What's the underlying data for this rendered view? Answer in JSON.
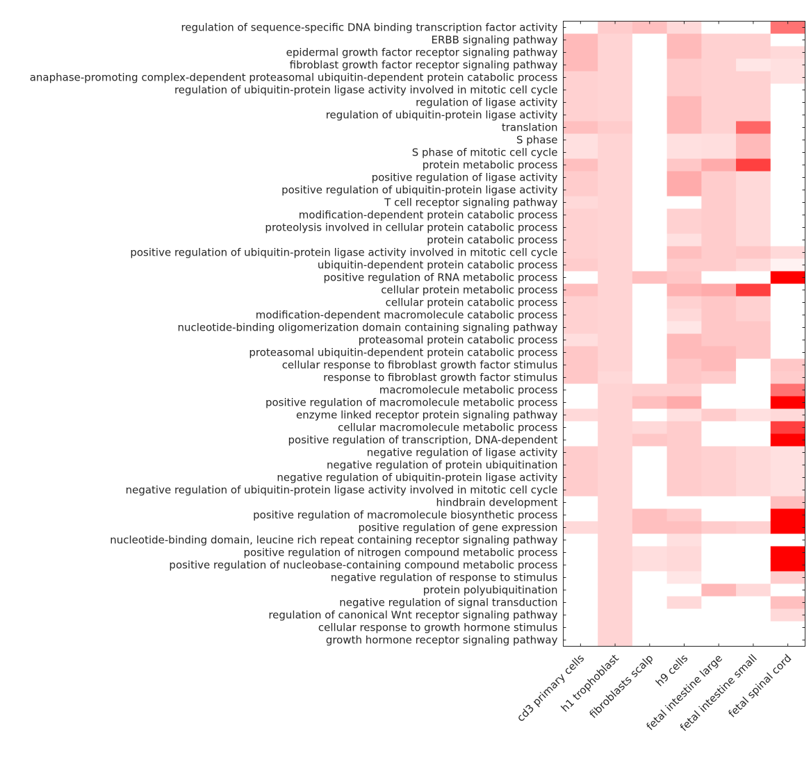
{
  "chart_data": {
    "type": "heatmap",
    "title": "",
    "xlabel": "",
    "ylabel": "",
    "colormap": {
      "low": "#ffffff",
      "high": "#ff0000"
    },
    "value_range": [
      0,
      1
    ],
    "columns": [
      "cd3 primary cells",
      "h1 trophoblast",
      "fibroblasts scalp",
      "h9 cells",
      "fetal intestine large",
      "fetal intestine small",
      "fetal spinal cord"
    ],
    "rows": [
      "regulation of sequence-specific DNA binding transcription factor activity",
      "ERBB signaling pathway",
      "epidermal growth factor receptor signaling pathway",
      "fibroblast growth factor receptor signaling pathway",
      "anaphase-promoting complex-dependent proteasomal ubiquitin-dependent protein catabolic process",
      "regulation of ubiquitin-protein ligase activity involved in mitotic cell cycle",
      "regulation of ligase activity",
      "regulation of ubiquitin-protein ligase activity",
      "translation",
      "S phase",
      "S phase of mitotic cell cycle",
      "protein metabolic process",
      "positive regulation of ligase activity",
      "positive regulation of ubiquitin-protein ligase activity",
      "T cell receptor signaling pathway",
      "modification-dependent protein catabolic process",
      "proteolysis involved in cellular protein catabolic process",
      "protein catabolic process",
      "positive regulation of ubiquitin-protein ligase activity involved in mitotic cell cycle",
      "ubiquitin-dependent protein catabolic process",
      "positive regulation of RNA metabolic process",
      "cellular protein metabolic process",
      "cellular protein catabolic process",
      "modification-dependent macromolecule catabolic process",
      "nucleotide-binding oligomerization domain containing signaling pathway",
      "proteasomal protein catabolic process",
      "proteasomal ubiquitin-dependent protein catabolic process",
      "cellular response to fibroblast growth factor stimulus",
      "response to fibroblast growth factor stimulus",
      "macromolecule metabolic process",
      "positive regulation of macromolecule metabolic process",
      "enzyme linked receptor protein signaling pathway",
      "cellular macromolecule metabolic process",
      "positive regulation of transcription, DNA-dependent",
      "negative regulation of ligase activity",
      "negative regulation of protein ubiquitination",
      "negative regulation of ubiquitin-protein ligase activity",
      "negative regulation of ubiquitin-protein ligase activity involved in mitotic cell cycle",
      "hindbrain development",
      "positive regulation of macromolecule biosynthetic process",
      "positive regulation of gene expression",
      "nucleotide-binding domain, leucine rich repeat containing receptor signaling pathway",
      "positive regulation of nitrogen compound metabolic process",
      "positive regulation of nucleobase-containing compound metabolic process",
      "negative regulation of response to stimulus",
      "protein polyubiquitination",
      "negative regulation of signal transduction",
      "regulation of canonical Wnt receptor signaling pathway",
      "cellular response to growth hormone stimulus",
      "growth hormone receptor signaling pathway"
    ],
    "values_by_column": [
      [
        0,
        0.27,
        0.27,
        0.27,
        0.18,
        0.18,
        0.18,
        0.18,
        0.25,
        0.12,
        0.12,
        0.25,
        0.2,
        0.2,
        0.15,
        0.18,
        0.18,
        0.18,
        0.18,
        0.2,
        0,
        0.25,
        0.18,
        0.18,
        0.18,
        0.13,
        0.22,
        0.22,
        0.22,
        0,
        0,
        0.15,
        0,
        0,
        0.2,
        0.2,
        0.2,
        0.2,
        0,
        0,
        0.15,
        0,
        0,
        0,
        0,
        0,
        0,
        0,
        0,
        0
      ],
      [
        0.2,
        0.17,
        0.17,
        0.17,
        0.17,
        0.17,
        0.17,
        0.17,
        0.2,
        0.17,
        0.17,
        0.17,
        0.17,
        0.17,
        0.17,
        0.17,
        0.17,
        0.17,
        0.17,
        0.17,
        0.17,
        0.17,
        0.17,
        0.17,
        0.17,
        0.17,
        0.17,
        0.17,
        0.15,
        0.17,
        0.17,
        0.17,
        0.17,
        0.17,
        0.17,
        0.17,
        0.17,
        0.17,
        0.17,
        0.17,
        0.17,
        0.17,
        0.17,
        0.17,
        0.17,
        0.17,
        0.17,
        0.17,
        0.17,
        0.17
      ],
      [
        0.25,
        0,
        0,
        0,
        0,
        0,
        0,
        0,
        0,
        0,
        0,
        0,
        0,
        0,
        0,
        0,
        0,
        0,
        0,
        0,
        0.25,
        0,
        0,
        0,
        0,
        0,
        0,
        0,
        0,
        0.18,
        0.25,
        0,
        0.15,
        0.22,
        0,
        0,
        0,
        0,
        0,
        0.25,
        0.25,
        0,
        0.13,
        0.13,
        0,
        0,
        0,
        0,
        0,
        0
      ],
      [
        0.15,
        0.27,
        0.27,
        0.2,
        0.2,
        0.2,
        0.28,
        0.28,
        0.28,
        0.12,
        0.12,
        0.22,
        0.33,
        0.33,
        0,
        0.18,
        0.18,
        0.12,
        0.25,
        0.2,
        0.22,
        0.3,
        0.18,
        0.15,
        0.1,
        0.27,
        0.27,
        0.22,
        0.22,
        0.18,
        0.33,
        0.12,
        0.2,
        0.2,
        0.2,
        0.2,
        0.2,
        0.2,
        0,
        0.2,
        0.25,
        0.12,
        0.15,
        0.15,
        0.1,
        0,
        0.15,
        0,
        0,
        0
      ],
      [
        0,
        0.18,
        0.18,
        0.18,
        0.18,
        0.18,
        0.18,
        0.18,
        0.18,
        0.13,
        0.13,
        0.33,
        0.2,
        0.2,
        0.2,
        0.2,
        0.2,
        0.2,
        0.2,
        0.2,
        0,
        0.33,
        0.22,
        0.22,
        0.22,
        0.22,
        0.27,
        0.27,
        0.2,
        0,
        0,
        0.2,
        0,
        0,
        0.18,
        0.18,
        0.18,
        0.18,
        0,
        0,
        0.2,
        0,
        0,
        0,
        0,
        0.28,
        0,
        0,
        0,
        0
      ],
      [
        0,
        0.18,
        0.18,
        0.1,
        0.18,
        0.18,
        0.18,
        0.18,
        0.6,
        0.27,
        0.27,
        0.75,
        0.15,
        0.15,
        0.15,
        0.15,
        0.15,
        0.15,
        0.22,
        0.15,
        0,
        0.75,
        0.18,
        0.18,
        0.22,
        0.22,
        0.22,
        0,
        0,
        0,
        0,
        0.12,
        0,
        0,
        0.15,
        0.15,
        0.15,
        0.15,
        0,
        0,
        0.18,
        0,
        0,
        0,
        0,
        0.15,
        0,
        0,
        0,
        0
      ],
      [
        0.55,
        0,
        0.15,
        0.12,
        0.12,
        0,
        0,
        0,
        0,
        0,
        0,
        0,
        0,
        0,
        0,
        0,
        0,
        0,
        0.15,
        0.05,
        1,
        0,
        0,
        0,
        0,
        0,
        0,
        0.22,
        0.2,
        0.55,
        1,
        0.15,
        0.75,
        1,
        0.12,
        0.12,
        0.12,
        0.12,
        0.25,
        1,
        1,
        0,
        1,
        1,
        0.2,
        0,
        0.25,
        0.15,
        0,
        0
      ]
    ]
  }
}
